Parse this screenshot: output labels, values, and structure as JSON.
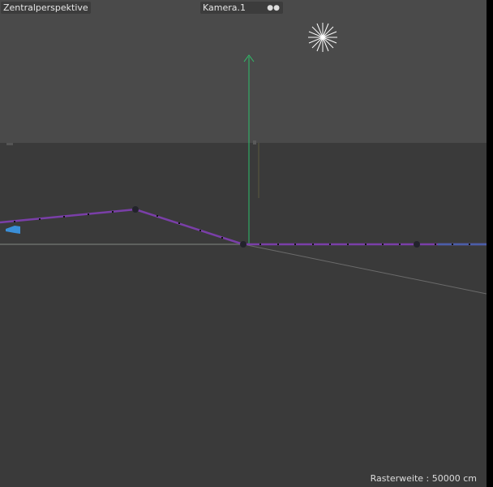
{
  "viewport": {
    "view_name": "Zentralperspektive",
    "camera_name": "Kamera.1",
    "camera_icon": "camera-icon",
    "grid_spacing": "Rasterweite : 50000 cm"
  },
  "colors": {
    "sky": "#4a4a4a",
    "floor": "#3a3a3a",
    "spline": "#7a3fa8",
    "y_axis": "#2fbf6a",
    "light": "#ffffff"
  }
}
